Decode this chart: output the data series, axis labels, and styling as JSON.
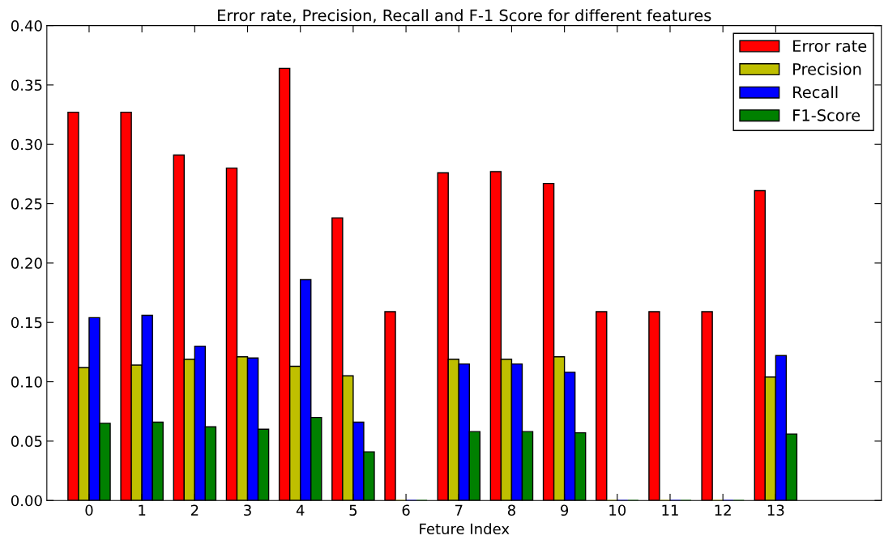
{
  "chart_data": {
    "type": "bar",
    "title": "Error rate, Precision, Recall and F-1 Score for different features",
    "xlabel": "Feture Index",
    "x": [
      0,
      1,
      2,
      3,
      4,
      5,
      6,
      7,
      8,
      9,
      10,
      11,
      12,
      13
    ],
    "xlim": [
      -0.8,
      15
    ],
    "xticks": [
      0,
      1,
      2,
      3,
      4,
      5,
      6,
      7,
      8,
      9,
      10,
      11,
      12,
      13
    ],
    "ylim": [
      0,
      0.4
    ],
    "yticks": [
      {
        "value": 0,
        "label": "0.00"
      },
      {
        "value": 0.05,
        "label": "0.05"
      },
      {
        "value": 0.1,
        "label": "0.10"
      },
      {
        "value": 0.15,
        "label": "0.15"
      },
      {
        "value": 0.2,
        "label": "0.20"
      },
      {
        "value": 0.25,
        "label": "0.25"
      },
      {
        "value": 0.3,
        "label": "0.30"
      },
      {
        "value": 0.35,
        "label": "0.35"
      },
      {
        "value": 0.4,
        "label": "0.40"
      }
    ],
    "series": [
      {
        "name": "Error rate",
        "color": "#ff0000",
        "values": [
          0.327,
          0.327,
          0.291,
          0.28,
          0.364,
          0.238,
          0.159,
          0.276,
          0.277,
          0.267,
          0.159,
          0.159,
          0.159,
          0.261
        ]
      },
      {
        "name": "Precision",
        "color": "#bfbf00",
        "values": [
          0.112,
          0.114,
          0.119,
          0.121,
          0.113,
          0.105,
          0,
          0.119,
          0.119,
          0.121,
          0,
          0,
          0,
          0.104
        ]
      },
      {
        "name": "Recall",
        "color": "#0000ff",
        "values": [
          0.154,
          0.156,
          0.13,
          0.12,
          0.186,
          0.066,
          0,
          0.115,
          0.115,
          0.108,
          0,
          0,
          0,
          0.122
        ]
      },
      {
        "name": "F1-Score",
        "color": "#008000",
        "values": [
          0.065,
          0.066,
          0.062,
          0.06,
          0.07,
          0.041,
          0,
          0.058,
          0.058,
          0.057,
          0,
          0,
          0,
          0.056
        ]
      }
    ],
    "legend": "top right",
    "grid": false
  }
}
